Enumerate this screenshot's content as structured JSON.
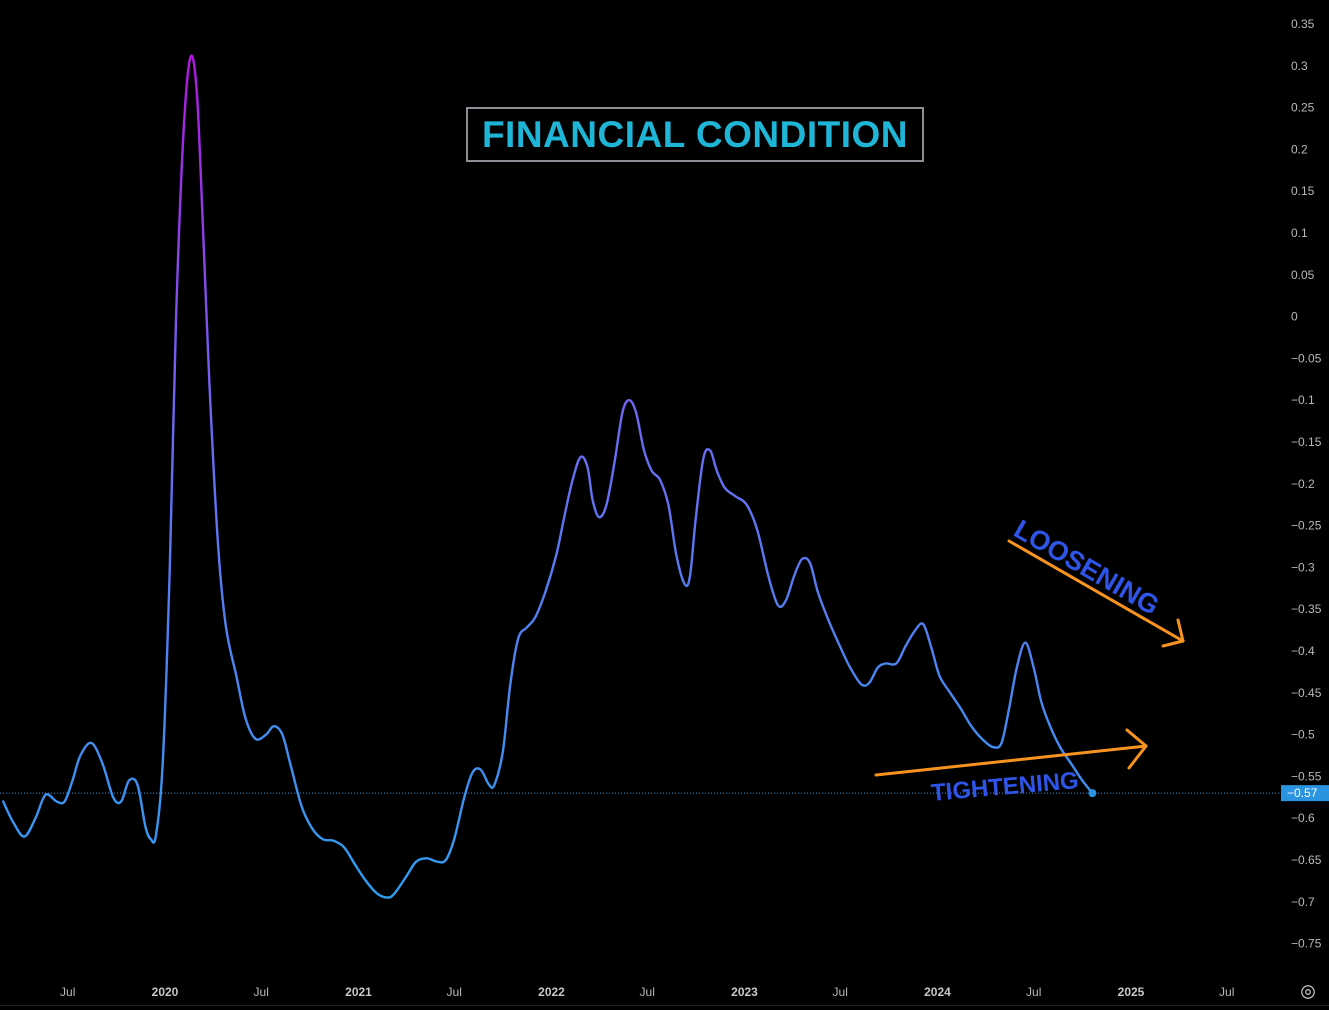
{
  "chart_data": {
    "type": "line",
    "title": "FINANCIAL CONDITION",
    "xlabel": "",
    "ylabel": "",
    "x_range": [
      "2019-03-01",
      "2025-11-15"
    ],
    "ylim": [
      -0.775,
      0.36
    ],
    "y_ticks": [
      "0.35",
      "0.3",
      "0.25",
      "0.2",
      "0.15",
      "0.1",
      "0.05",
      "0",
      "−0.05",
      "−0.1",
      "−0.15",
      "−0.2",
      "−0.25",
      "−0.3",
      "−0.35",
      "−0.4",
      "−0.45",
      "−0.5",
      "−0.55",
      "−0.6",
      "−0.65",
      "−0.7",
      "−0.75"
    ],
    "y_tick_values": [
      0.35,
      0.3,
      0.25,
      0.2,
      0.15,
      0.1,
      0.05,
      0,
      -0.05,
      -0.1,
      -0.15,
      -0.2,
      -0.25,
      -0.3,
      -0.35,
      -0.4,
      -0.45,
      -0.5,
      -0.55,
      -0.6,
      -0.65,
      -0.7,
      -0.75
    ],
    "x_ticks": [
      {
        "label": "Jul",
        "date": "2019-07-01",
        "year": false
      },
      {
        "label": "2020",
        "date": "2020-01-01",
        "year": true
      },
      {
        "label": "Jul",
        "date": "2020-07-01",
        "year": false
      },
      {
        "label": "2021",
        "date": "2021-01-01",
        "year": true
      },
      {
        "label": "Jul",
        "date": "2021-07-01",
        "year": false
      },
      {
        "label": "2022",
        "date": "2022-01-01",
        "year": true
      },
      {
        "label": "Jul",
        "date": "2022-07-01",
        "year": false
      },
      {
        "label": "2023",
        "date": "2023-01-01",
        "year": true
      },
      {
        "label": "Jul",
        "date": "2023-07-01",
        "year": false
      },
      {
        "label": "2024",
        "date": "2024-01-01",
        "year": true
      },
      {
        "label": "Jul",
        "date": "2024-07-01",
        "year": false
      },
      {
        "label": "2025",
        "date": "2025-01-01",
        "year": true
      },
      {
        "label": "Jul",
        "date": "2025-07-01",
        "year": false
      }
    ],
    "current_value_label": "−0.57",
    "current_value": -0.57,
    "colors": {
      "low": "#2e9ef0",
      "mid": "#6b6af2",
      "high": "#b314e0",
      "current_badge": "#2a94e0",
      "arrow": "#f7931e",
      "annotation": "#2f55e8",
      "title": "#1fb5d6"
    },
    "grid": false,
    "legend": "none",
    "series": [
      {
        "points": [
          [
            "2019-03-01",
            -0.58
          ],
          [
            "2019-03-20",
            -0.605
          ],
          [
            "2019-04-10",
            -0.622
          ],
          [
            "2019-05-01",
            -0.6
          ],
          [
            "2019-05-20",
            -0.572
          ],
          [
            "2019-06-10",
            -0.58
          ],
          [
            "2019-06-25",
            -0.58
          ],
          [
            "2019-07-10",
            -0.555
          ],
          [
            "2019-07-25",
            -0.525
          ],
          [
            "2019-08-15",
            -0.51
          ],
          [
            "2019-09-05",
            -0.535
          ],
          [
            "2019-09-25",
            -0.575
          ],
          [
            "2019-10-10",
            -0.58
          ],
          [
            "2019-10-25",
            -0.555
          ],
          [
            "2019-11-10",
            -0.56
          ],
          [
            "2019-11-25",
            -0.61
          ],
          [
            "2019-12-05",
            -0.625
          ],
          [
            "2019-12-15",
            -0.62
          ],
          [
            "2019-12-28",
            -0.53
          ],
          [
            "2020-01-10",
            -0.3
          ],
          [
            "2020-01-22",
            0.0
          ],
          [
            "2020-02-05",
            0.22
          ],
          [
            "2020-02-18",
            0.31
          ],
          [
            "2020-03-01",
            0.27
          ],
          [
            "2020-03-12",
            0.12
          ],
          [
            "2020-03-25",
            -0.08
          ],
          [
            "2020-04-10",
            -0.27
          ],
          [
            "2020-04-25",
            -0.37
          ],
          [
            "2020-05-15",
            -0.43
          ],
          [
            "2020-06-01",
            -0.48
          ],
          [
            "2020-06-20",
            -0.505
          ],
          [
            "2020-07-10",
            -0.5
          ],
          [
            "2020-07-25",
            -0.49
          ],
          [
            "2020-08-10",
            -0.5
          ],
          [
            "2020-08-25",
            -0.535
          ],
          [
            "2020-09-15",
            -0.585
          ],
          [
            "2020-10-05",
            -0.612
          ],
          [
            "2020-10-25",
            -0.625
          ],
          [
            "2020-11-15",
            -0.627
          ],
          [
            "2020-12-05",
            -0.635
          ],
          [
            "2020-12-25",
            -0.655
          ],
          [
            "2021-01-15",
            -0.675
          ],
          [
            "2021-02-05",
            -0.69
          ],
          [
            "2021-02-25",
            -0.695
          ],
          [
            "2021-03-10",
            -0.69
          ],
          [
            "2021-04-01",
            -0.67
          ],
          [
            "2021-04-20",
            -0.652
          ],
          [
            "2021-05-10",
            -0.648
          ],
          [
            "2021-05-30",
            -0.652
          ],
          [
            "2021-06-15",
            -0.65
          ],
          [
            "2021-07-01",
            -0.625
          ],
          [
            "2021-07-20",
            -0.575
          ],
          [
            "2021-08-05",
            -0.545
          ],
          [
            "2021-08-20",
            -0.542
          ],
          [
            "2021-09-05",
            -0.56
          ],
          [
            "2021-09-15",
            -0.56
          ],
          [
            "2021-10-01",
            -0.52
          ],
          [
            "2021-10-15",
            -0.44
          ],
          [
            "2021-10-30",
            -0.385
          ],
          [
            "2021-11-15",
            -0.372
          ],
          [
            "2021-12-01",
            -0.36
          ],
          [
            "2021-12-20",
            -0.33
          ],
          [
            "2022-01-10",
            -0.285
          ],
          [
            "2022-01-25",
            -0.24
          ],
          [
            "2022-02-10",
            -0.195
          ],
          [
            "2022-02-25",
            -0.168
          ],
          [
            "2022-03-10",
            -0.18
          ],
          [
            "2022-03-20",
            -0.22
          ],
          [
            "2022-04-01",
            -0.24
          ],
          [
            "2022-04-15",
            -0.225
          ],
          [
            "2022-04-30",
            -0.175
          ],
          [
            "2022-05-15",
            -0.115
          ],
          [
            "2022-05-28",
            -0.1
          ],
          [
            "2022-06-10",
            -0.115
          ],
          [
            "2022-06-25",
            -0.16
          ],
          [
            "2022-07-10",
            -0.185
          ],
          [
            "2022-07-25",
            -0.195
          ],
          [
            "2022-08-10",
            -0.225
          ],
          [
            "2022-08-25",
            -0.285
          ],
          [
            "2022-09-10",
            -0.32
          ],
          [
            "2022-09-20",
            -0.31
          ],
          [
            "2022-10-01",
            -0.24
          ],
          [
            "2022-10-15",
            -0.17
          ],
          [
            "2022-10-28",
            -0.16
          ],
          [
            "2022-11-10",
            -0.185
          ],
          [
            "2022-11-25",
            -0.205
          ],
          [
            "2022-12-15",
            -0.215
          ],
          [
            "2023-01-05",
            -0.225
          ],
          [
            "2023-01-25",
            -0.255
          ],
          [
            "2023-02-15",
            -0.31
          ],
          [
            "2023-03-05",
            -0.345
          ],
          [
            "2023-03-20",
            -0.34
          ],
          [
            "2023-04-05",
            -0.31
          ],
          [
            "2023-04-20",
            -0.29
          ],
          [
            "2023-05-05",
            -0.295
          ],
          [
            "2023-05-20",
            -0.33
          ],
          [
            "2023-06-10",
            -0.365
          ],
          [
            "2023-07-01",
            -0.395
          ],
          [
            "2023-07-20",
            -0.42
          ],
          [
            "2023-08-10",
            -0.44
          ],
          [
            "2023-08-25",
            -0.438
          ],
          [
            "2023-09-10",
            -0.42
          ],
          [
            "2023-09-25",
            -0.415
          ],
          [
            "2023-10-15",
            -0.415
          ],
          [
            "2023-11-01",
            -0.395
          ],
          [
            "2023-11-20",
            -0.375
          ],
          [
            "2023-12-05",
            -0.368
          ],
          [
            "2023-12-20",
            -0.395
          ],
          [
            "2024-01-05",
            -0.43
          ],
          [
            "2024-01-25",
            -0.45
          ],
          [
            "2024-02-15",
            -0.47
          ],
          [
            "2024-03-05",
            -0.49
          ],
          [
            "2024-03-25",
            -0.505
          ],
          [
            "2024-04-15",
            -0.515
          ],
          [
            "2024-05-01",
            -0.51
          ],
          [
            "2024-05-15",
            -0.47
          ],
          [
            "2024-05-30",
            -0.42
          ],
          [
            "2024-06-15",
            -0.39
          ],
          [
            "2024-07-01",
            -0.42
          ],
          [
            "2024-07-15",
            -0.46
          ],
          [
            "2024-08-01",
            -0.49
          ],
          [
            "2024-08-20",
            -0.515
          ],
          [
            "2024-09-10",
            -0.535
          ],
          [
            "2024-10-01",
            -0.555
          ],
          [
            "2024-10-20",
            -0.57
          ]
        ]
      }
    ]
  },
  "annotations": {
    "loosening": "LOOSENING",
    "tightening": "TIGHTENING"
  },
  "toolbar": {
    "settings_icon": "gear-icon"
  }
}
